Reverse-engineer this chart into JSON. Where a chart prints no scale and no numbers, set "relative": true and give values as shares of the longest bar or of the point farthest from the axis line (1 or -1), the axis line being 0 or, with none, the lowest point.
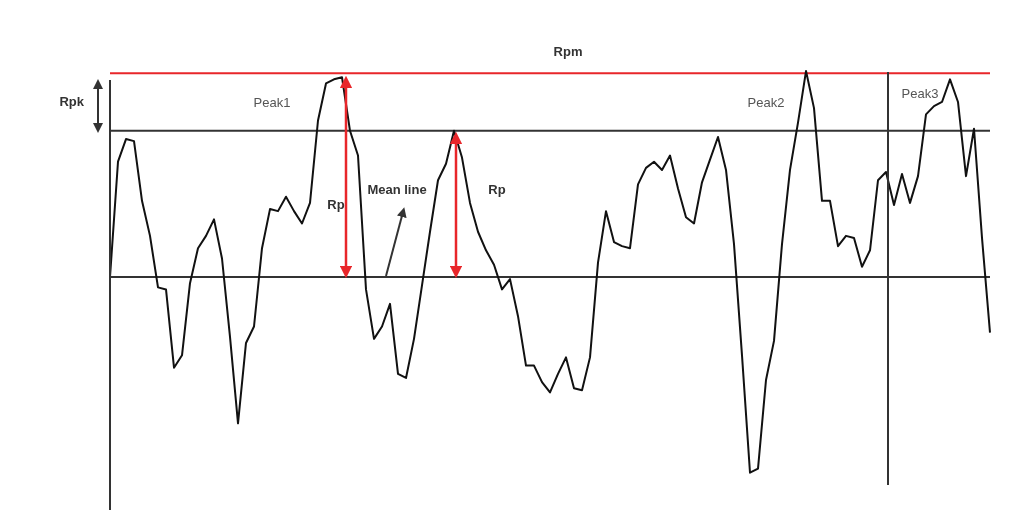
{
  "chart_data": {
    "type": "line",
    "relative": true,
    "color": "#111111",
    "categories": [
      null,
      null,
      null,
      null,
      null,
      null,
      null,
      null,
      null,
      null,
      null,
      null,
      null,
      null,
      null,
      null,
      null,
      null,
      null,
      null,
      null,
      null,
      null,
      null,
      null,
      null,
      null,
      null,
      null,
      null,
      null,
      null,
      null,
      null,
      null,
      null,
      null,
      null,
      null,
      null,
      null,
      null,
      null,
      null,
      null,
      null,
      null,
      null,
      null,
      null,
      null,
      null,
      null,
      null,
      null,
      null,
      null,
      null,
      null,
      null,
      null,
      null,
      null,
      null,
      null,
      null,
      null,
      null,
      null,
      null,
      null,
      null,
      null,
      null,
      null,
      null,
      null,
      null,
      null,
      null,
      null,
      null,
      null,
      null,
      null,
      null,
      null,
      null,
      null,
      null,
      null,
      null,
      null,
      null,
      null,
      null,
      null,
      null,
      null,
      null,
      null,
      null,
      null,
      null,
      null,
      null,
      null,
      null,
      null,
      null,
      null
    ],
    "values": [
      0,
      0.56,
      0.67,
      0.66,
      0.37,
      0.2,
      -0.05,
      -0.06,
      -0.44,
      -0.38,
      -0.03,
      0.14,
      0.2,
      0.28,
      0.09,
      -0.29,
      -0.71,
      -0.32,
      -0.24,
      0.14,
      0.33,
      0.32,
      0.39,
      0.32,
      0.26,
      0.36,
      0.76,
      0.94,
      0.96,
      0.97,
      0.71,
      0.59,
      -0.06,
      -0.3,
      -0.24,
      -0.13,
      -0.47,
      -0.49,
      -0.3,
      -0.04,
      0.22,
      0.47,
      0.55,
      0.71,
      0.58,
      0.36,
      0.22,
      0.13,
      0.06,
      -0.06,
      -0.01,
      -0.19,
      -0.43,
      -0.43,
      -0.51,
      -0.56,
      -0.47,
      -0.39,
      -0.54,
      -0.55,
      -0.39,
      0.07,
      0.32,
      0.17,
      0.15,
      0.14,
      0.45,
      0.53,
      0.56,
      0.52,
      0.59,
      0.43,
      0.29,
      0.26,
      0.46,
      0.57,
      0.68,
      0.52,
      0.16,
      -0.38,
      -0.95,
      -0.93,
      -0.5,
      -0.31,
      0.16,
      0.52,
      0.75,
      1,
      0.82,
      0.37,
      0.37,
      0.15,
      0.2,
      0.19,
      0.05,
      0.13,
      0.47,
      0.51,
      0.35,
      0.5,
      0.36,
      0.49,
      0.79,
      0.83,
      0.85,
      0.96,
      0.85,
      0.49,
      0.72,
      0.19,
      -0.27
    ],
    "ref_lines": [
      {
        "axis": "y",
        "value": 0,
        "color": "#333333"
      },
      {
        "axis": "y",
        "value": 0.71,
        "color": "#333333"
      },
      {
        "axis": "y",
        "value": 0.99,
        "color": "#e8262a"
      }
    ],
    "annotations": [
      "Rpm",
      "Rpk",
      "Peak1",
      "Peak2",
      "Peak3",
      "Rp",
      "Mean line",
      "Rp"
    ]
  }
}
